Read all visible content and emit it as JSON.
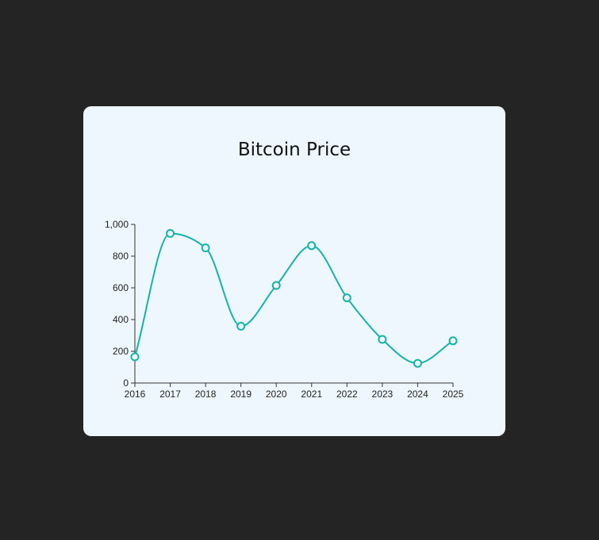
{
  "chart_data": {
    "type": "line",
    "title": "Bitcoin Price",
    "xlabel": "",
    "ylabel": "",
    "x": [
      "2016",
      "2017",
      "2018",
      "2019",
      "2020",
      "2021",
      "2022",
      "2023",
      "2024",
      "2025"
    ],
    "series": [
      {
        "values": [
          165,
          943,
          852,
          358,
          615,
          866,
          537,
          275,
          124,
          266
        ],
        "color": "#14b3aa"
      }
    ],
    "ylim": [
      0,
      1000
    ],
    "yticks": [
      0,
      200,
      400,
      600,
      800,
      1000
    ],
    "ytick_labels": [
      "0",
      "200",
      "400",
      "600",
      "800",
      "1,000"
    ],
    "grid": false,
    "legend": "none",
    "marker": "hollow-circle",
    "background": "#eef7fe",
    "page_background": "#242424"
  }
}
